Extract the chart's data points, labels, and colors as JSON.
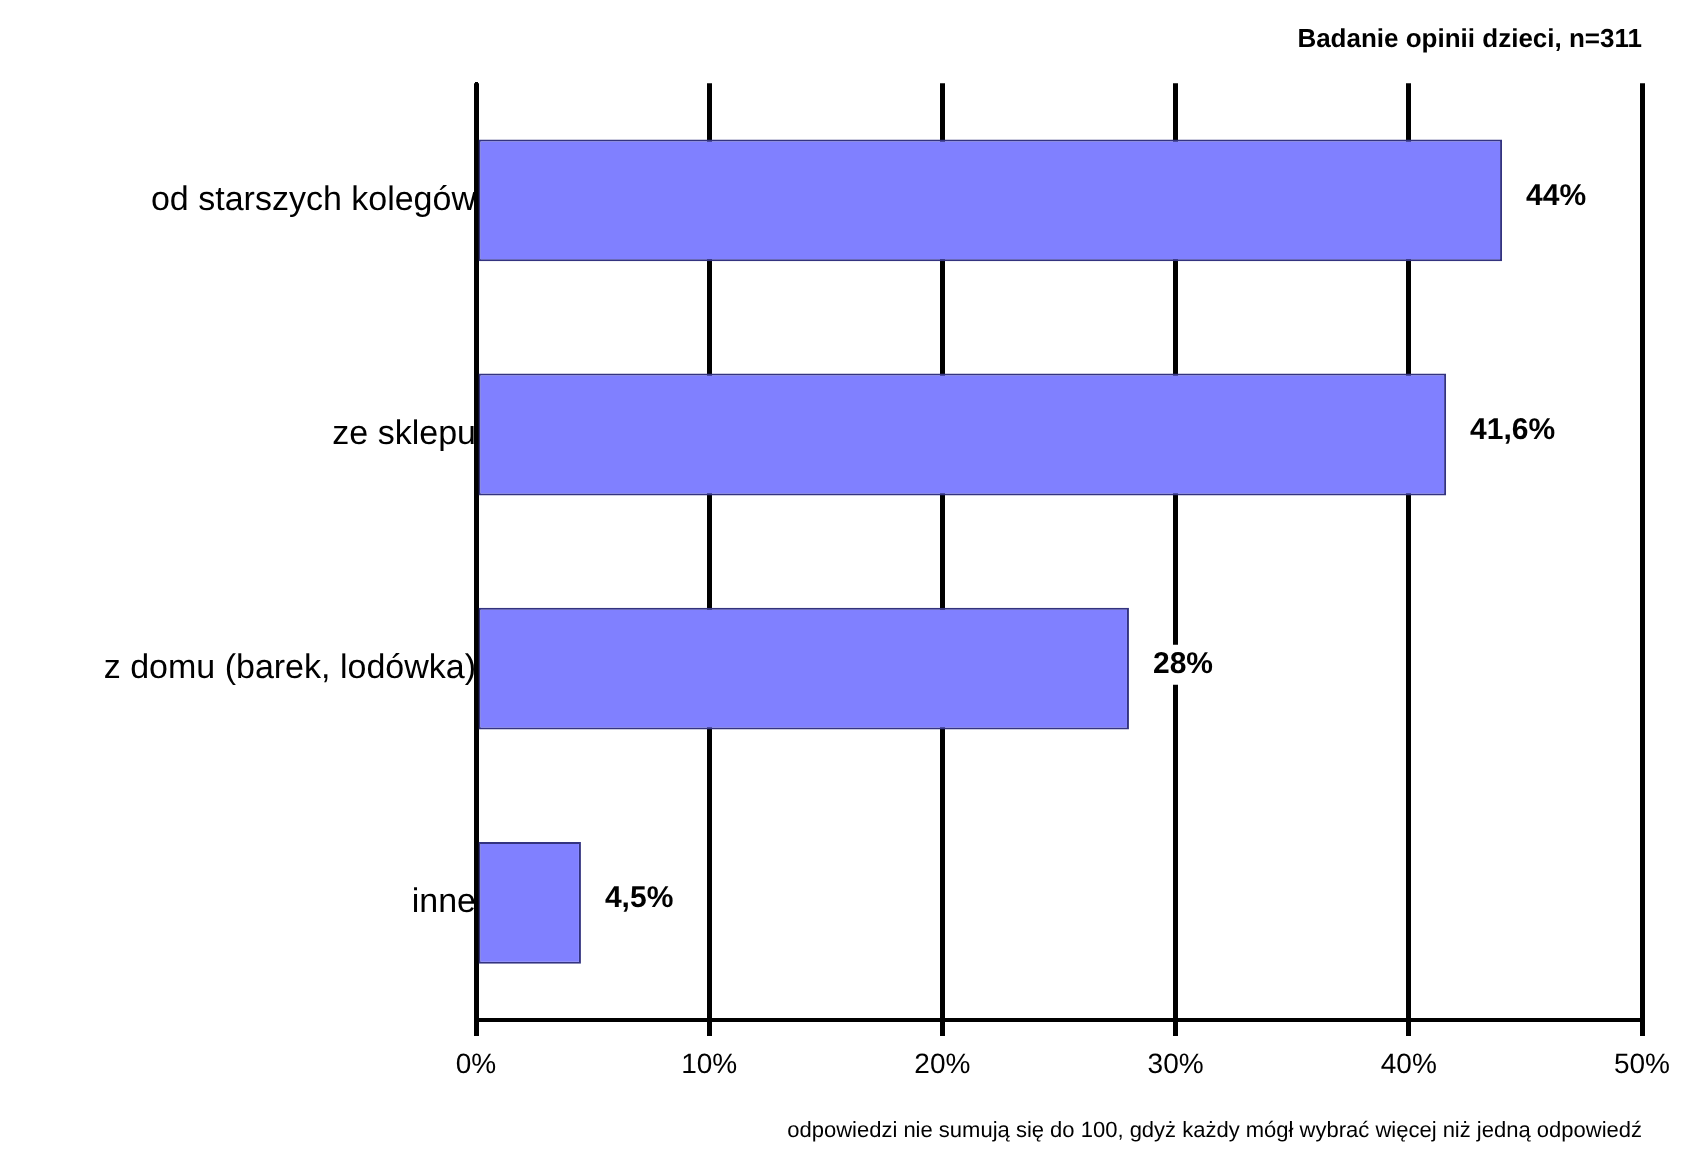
{
  "chart_data": {
    "type": "bar",
    "orientation": "horizontal",
    "title": "Badanie opinii dzieci, n=311",
    "categories": [
      "od starszych kolegów",
      "ze sklepu",
      "z domu (barek, lodówka)",
      "inne"
    ],
    "values": [
      44,
      41.6,
      28,
      4.5
    ],
    "value_labels": [
      "44%",
      "41,6%",
      "28%",
      "4,5%"
    ],
    "color": "#8080ff",
    "xlim": [
      0,
      50
    ],
    "xticks": [
      {
        "value": 0,
        "label": "0%"
      },
      {
        "value": 10,
        "label": "10%"
      },
      {
        "value": 20,
        "label": "20%"
      },
      {
        "value": 30,
        "label": "30%"
      },
      {
        "value": 40,
        "label": "40%"
      },
      {
        "value": 50,
        "label": "50%"
      }
    ],
    "grid": "x",
    "annotations": [
      "odpowiedzi nie sumują się do 100, gdyż każdy mógł wybrać więcej niż jedną odpowiedź"
    ]
  }
}
